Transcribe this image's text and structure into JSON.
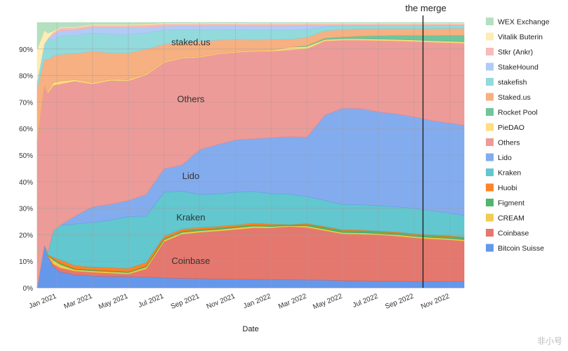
{
  "chart_data": {
    "type": "area",
    "stacked": true,
    "normalized": true,
    "xlabel": "Date",
    "ylabel": "",
    "ylim": [
      0,
      100
    ],
    "y_ticks": [
      "0%",
      "10%",
      "20%",
      "30%",
      "40%",
      "50%",
      "60%",
      "70%",
      "80%",
      "90%"
    ],
    "y_tick_values": [
      0,
      10,
      20,
      30,
      40,
      50,
      60,
      70,
      80,
      90
    ],
    "x_ticks": [
      "Jan 2021",
      "Mar 2021",
      "May 2021",
      "Jul 2021",
      "Sep 2021",
      "Nov 2021",
      "Jan 2022",
      "Mar 2022",
      "May 2022",
      "Jul 2022",
      "Sep 2022",
      "Nov 2022"
    ],
    "x_tick_months": [
      1,
      3,
      5,
      7,
      9,
      11,
      13,
      15,
      17,
      19,
      21,
      23
    ],
    "x_range_months": [
      -0.1,
      23.8
    ],
    "x_unit": "months since Dec 1 2020",
    "x": [
      -0.1,
      0.3,
      0.5,
      0.8,
      1.2,
      2.0,
      3.0,
      4.0,
      5.0,
      6.0,
      7.0,
      8.0,
      9.0,
      10.0,
      11.0,
      12.0,
      13.0,
      14.0,
      15.0,
      16.0,
      17.0,
      18.0,
      19.0,
      20.0,
      21.0,
      22.0,
      23.0,
      23.8
    ],
    "series": [
      {
        "name": "Bitcoin Suisse",
        "color": "#4a86e8",
        "values": [
          0,
          16,
          12,
          8,
          6,
          5,
          4.5,
          4.3,
          4.2,
          4.0,
          3.8,
          3.6,
          3.5,
          3.4,
          3.3,
          3.2,
          3.1,
          3.0,
          2.9,
          2.8,
          2.7,
          2.6,
          2.5,
          2.5,
          2.4,
          2.4,
          2.4,
          2.4
        ]
      },
      {
        "name": "Coinbase",
        "color": "#e06055",
        "values": [
          0,
          0,
          0,
          1,
          1.5,
          1.5,
          1.5,
          1.3,
          1.0,
          3.0,
          14.0,
          17.0,
          17.5,
          18.5,
          19.0,
          19.5,
          19.5,
          20.0,
          19.5,
          18.0,
          17.5,
          17.5,
          17.5,
          17.0,
          16.5,
          16.0,
          15.5,
          15.0
        ]
      },
      {
        "name": "CREAM",
        "color": "#f1c232",
        "values": [
          0,
          0,
          0,
          1.5,
          1.2,
          0.5,
          0.5,
          0.5,
          0.5,
          0.6,
          0.6,
          0.6,
          0.6,
          0.6,
          0.6,
          0.6,
          0.5,
          0.3,
          0.5,
          0.5,
          0.5,
          0.5,
          0.5,
          0.5,
          0.5,
          0.5,
          0.5,
          0.5
        ]
      },
      {
        "name": "Figment",
        "color": "#34a853",
        "values": [
          0,
          0,
          0,
          0.5,
          0.5,
          0.3,
          0.3,
          0.3,
          0.3,
          0.4,
          0.5,
          0.5,
          0.5,
          0.5,
          0.5,
          0.5,
          0.5,
          0.3,
          0.6,
          0.7,
          0.7,
          0.7,
          0.7,
          0.7,
          0.7,
          0.7,
          0.7,
          0.7
        ]
      },
      {
        "name": "Huobi",
        "color": "#ff6d01",
        "values": [
          0,
          0,
          0.5,
          0.5,
          1.3,
          1.2,
          1.2,
          1.2,
          1.3,
          1.3,
          0.9,
          0.8,
          0.7,
          0.7,
          0.6,
          0.6,
          0.4,
          0.1,
          0.3,
          0.3,
          0.3,
          0.3,
          0.3,
          0.3,
          0.3,
          0.3,
          0.3,
          0.3
        ]
      },
      {
        "name": "Kraken",
        "color": "#46bdc6",
        "values": [
          0,
          0,
          1.0,
          10.0,
          13.0,
          16.0,
          17.0,
          18.0,
          19.5,
          17.0,
          17.0,
          14.5,
          12.5,
          12.5,
          12.5,
          12.0,
          11.5,
          11.5,
          10.0,
          9.5,
          9.5,
          9.5,
          9.5,
          9.5,
          9.5,
          9.0,
          8.5,
          8.0
        ]
      },
      {
        "name": "Lido",
        "color": "#6d9eeb",
        "values": [
          0,
          0,
          0,
          0,
          0,
          3,
          6,
          6,
          6,
          8,
          9,
          10,
          17,
          19,
          20,
          20,
          21,
          21.5,
          22,
          31,
          36,
          36,
          35.5,
          35,
          34.5,
          34,
          33.5,
          33.5
        ]
      },
      {
        "name": "Others",
        "color": "#ea8a86",
        "values": [
          55,
          60,
          60,
          55,
          53,
          52,
          47,
          47,
          45,
          44,
          41,
          41,
          35,
          35,
          33.5,
          33,
          32.7,
          32.5,
          32.8,
          27,
          25.5,
          25.6,
          27,
          27.5,
          28.5,
          29.5,
          30,
          30.5
        ]
      },
      {
        "name": "PieDAO",
        "color": "#fdd86a",
        "values": [
          0,
          0,
          0.5,
          1.0,
          1.0,
          0.5,
          0.5,
          0.4,
          0.4,
          0.4,
          0.4,
          0.3,
          0.3,
          0.3,
          0.3,
          0.3,
          0.3,
          1.0,
          0.8,
          0.5,
          0.5,
          0.5,
          0.5,
          0.5,
          0.5,
          0.5,
          0.5,
          0.5
        ]
      },
      {
        "name": "Rocket Pool",
        "color": "#57bb8a",
        "values": [
          0,
          0,
          0,
          0,
          0,
          0,
          0,
          0,
          0,
          0,
          0,
          0,
          0,
          0,
          0,
          0,
          0,
          0,
          0.3,
          0.5,
          0.7,
          1.0,
          1.3,
          1.5,
          1.7,
          2.0,
          2.2,
          2.4
        ]
      },
      {
        "name": "Staked.us",
        "color": "#f6a26b",
        "values": [
          20,
          10,
          12,
          10,
          10,
          10,
          12,
          10,
          10,
          9,
          6.5,
          5.5,
          5.5,
          5.0,
          4.5,
          4.0,
          4.0,
          3.0,
          3.0,
          2.7,
          2.7,
          2.7,
          2.6,
          2.6,
          2.6,
          2.6,
          2.6,
          2.6
        ]
      },
      {
        "name": "stakefish",
        "color": "#7fd4d6",
        "values": [
          3,
          6,
          8,
          6,
          7,
          7,
          7,
          7,
          7,
          6,
          5.5,
          5,
          4.5,
          4,
          3.8,
          3.8,
          3.7,
          3.5,
          3.0,
          1.5,
          1.5,
          1.2,
          1.2,
          1.1,
          1.1,
          1.1,
          1.0,
          1.0
        ]
      },
      {
        "name": "StakeHound",
        "color": "#a4c2f4",
        "values": [
          0,
          0,
          0,
          2,
          2,
          2,
          2,
          2.5,
          2.5,
          2,
          1.5,
          1.5,
          1.5,
          1.5,
          1.5,
          1.5,
          1.5,
          1.5,
          1.5,
          0.5,
          0.2,
          0.2,
          0.2,
          0.2,
          0.2,
          0.2,
          0.2,
          0.2
        ]
      },
      {
        "name": "Stkr (Ankr)",
        "color": "#f4b0ad",
        "values": [
          0,
          0,
          0,
          1,
          1,
          1,
          1,
          1,
          1,
          1,
          0.9,
          0.8,
          0.8,
          0.8,
          0.8,
          0.8,
          0.8,
          0.8,
          0.6,
          0.5,
          0.5,
          0.5,
          0.5,
          0.5,
          0.5,
          0.5,
          0.5,
          0.5
        ]
      },
      {
        "name": "Vitalik Buterin",
        "color": "#fde9a6",
        "values": [
          12,
          5,
          2,
          0.5,
          0.3,
          0.3,
          0.3,
          0.3,
          0.3,
          0.3,
          0.3,
          0.3,
          0.3,
          0.3,
          0.3,
          0.3,
          0.3,
          0.3,
          0.3,
          0.3,
          0.3,
          0.3,
          0.3,
          0.3,
          0.3,
          0.3,
          0.3,
          0.3
        ]
      },
      {
        "name": "WEX Exchange",
        "color": "#a8dab5",
        "values": [
          10,
          3,
          4,
          3.2,
          1.7,
          1.7,
          0.7,
          0.7,
          0.7,
          0.5,
          0.2,
          0.2,
          0.2,
          0.2,
          0.2,
          0.2,
          0.2,
          0.2,
          0.2,
          0.2,
          0.2,
          0.2,
          0.2,
          0.2,
          0.2,
          0.2,
          0.2,
          0.2
        ]
      }
    ],
    "legend": [
      "WEX Exchange",
      "Vitalik Buterin",
      "Stkr (Ankr)",
      "StakeHound",
      "stakefish",
      "Staked.us",
      "Rocket Pool",
      "PieDAO",
      "Others",
      "Lido",
      "Kraken",
      "Huobi",
      "Figment",
      "CREAM",
      "Coinbase",
      "Bitcoin Suisse"
    ],
    "legend_position": "right",
    "annotations": [
      {
        "text": "staked.us",
        "x": 8.5,
        "y": 92.5
      },
      {
        "text": "Others",
        "x": 8.5,
        "y": 71
      },
      {
        "text": "Lido",
        "x": 8.5,
        "y": 42
      },
      {
        "text": "Kraken",
        "x": 8.5,
        "y": 26.5
      },
      {
        "text": "Coinbase",
        "x": 8.5,
        "y": 10
      }
    ],
    "vertical_lines": [
      {
        "label": "the merge",
        "x": 21.5
      }
    ]
  },
  "watermark": "非小号"
}
